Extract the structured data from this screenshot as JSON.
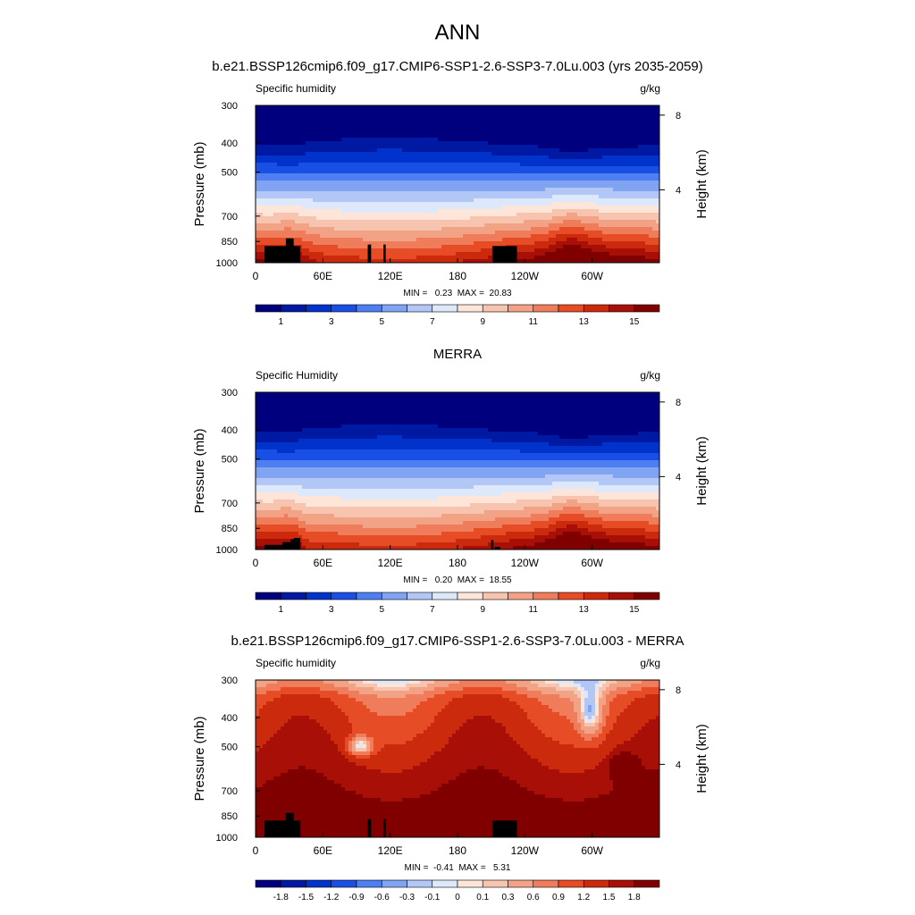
{
  "figure": {
    "season": "ANN",
    "model_title": "b.e21.BSSP126cmip6.f09_g17.CMIP6-SSP1-2.6-SSP3-7.0Lu.003 (yrs 2035-2059)",
    "obs_title": "MERRA",
    "diff_title": "b.e21.BSSP126cmip6.f09_g17.CMIP6-SSP1-2.6-SSP3-7.0Lu.003 - MERRA"
  },
  "colors": {
    "abs_palette": [
      "#00007f",
      "#0019a3",
      "#0033cc",
      "#1a4fe6",
      "#4d7ff2",
      "#80a3f2",
      "#b3c7f7",
      "#dde9fb",
      "#fde5d9",
      "#f7c4b0",
      "#f2a386",
      "#ef7d5b",
      "#e64d26",
      "#cc2a0d",
      "#a80f06",
      "#800000"
    ],
    "diff_palette": [
      "#00007f",
      "#0019a3",
      "#0033cc",
      "#1a4fe6",
      "#4d7ff2",
      "#80a3f2",
      "#b3c7f7",
      "#dde9fb",
      "#fde5d9",
      "#f7c4b0",
      "#f2a386",
      "#ef7d5b",
      "#e64d26",
      "#cc2a0d",
      "#a80f06",
      "#800000"
    ],
    "topography": "#000000"
  },
  "chart_data": [
    {
      "type": "heatmap",
      "id": "model",
      "left_title": "Specific humidity",
      "units": "g/kg",
      "ylabel": "Pressure (mb)",
      "y2label": "Height (km)",
      "xticks": [
        "0",
        "60E",
        "120E",
        "180",
        "120W",
        "60W"
      ],
      "xtick_lon": [
        0,
        60,
        120,
        180,
        240,
        300
      ],
      "xlim": [
        0,
        360
      ],
      "yticks": [
        "300",
        "400",
        "500",
        "700",
        "850",
        "1000"
      ],
      "ytick_p": [
        300,
        400,
        500,
        700,
        850,
        1000
      ],
      "ylim": [
        300,
        1000
      ],
      "y2ticks": [
        "8",
        "4"
      ],
      "y2tick_km": [
        8,
        4
      ],
      "stats": "MIN =   0.23  MAX =  20.83",
      "colorbar_labels": [
        "1",
        "3",
        "5",
        "7",
        "9",
        "11",
        "13",
        "15"
      ],
      "contour_levels": [
        1,
        2,
        3,
        4,
        5,
        6,
        7,
        8,
        9,
        10,
        11,
        12,
        13,
        14,
        15
      ]
    },
    {
      "type": "heatmap",
      "id": "obs",
      "left_title": "Specific Humidity",
      "units": "g/kg",
      "ylabel": "Pressure (mb)",
      "y2label": "Height (km)",
      "xticks": [
        "0",
        "60E",
        "120E",
        "180",
        "120W",
        "60W"
      ],
      "xtick_lon": [
        0,
        60,
        120,
        180,
        240,
        300
      ],
      "xlim": [
        0,
        360
      ],
      "yticks": [
        "300",
        "400",
        "500",
        "700",
        "850",
        "1000"
      ],
      "ytick_p": [
        300,
        400,
        500,
        700,
        850,
        1000
      ],
      "ylim": [
        300,
        1000
      ],
      "y2ticks": [
        "8",
        "4"
      ],
      "y2tick_km": [
        8,
        4
      ],
      "stats": "MIN =   0.20  MAX =  18.55",
      "colorbar_labels": [
        "1",
        "3",
        "5",
        "7",
        "9",
        "11",
        "13",
        "15"
      ],
      "contour_levels": [
        1,
        2,
        3,
        4,
        5,
        6,
        7,
        8,
        9,
        10,
        11,
        12,
        13,
        14,
        15
      ]
    },
    {
      "type": "heatmap",
      "id": "diff",
      "left_title": "Specific humidity",
      "units": "g/kg",
      "ylabel": "Pressure (mb)",
      "y2label": "Height (km)",
      "xticks": [
        "0",
        "60E",
        "120E",
        "180",
        "120W",
        "60W"
      ],
      "xtick_lon": [
        0,
        60,
        120,
        180,
        240,
        300
      ],
      "xlim": [
        0,
        360
      ],
      "yticks": [
        "300",
        "400",
        "500",
        "700",
        "850",
        "1000"
      ],
      "ytick_p": [
        300,
        400,
        500,
        700,
        850,
        1000
      ],
      "ylim": [
        300,
        1000
      ],
      "y2ticks": [
        "8",
        "4"
      ],
      "y2tick_km": [
        8,
        4
      ],
      "stats": "MIN =  -0.41  MAX =   5.31",
      "colorbar_labels": [
        "-1.8",
        "-1.5",
        "-1.2",
        "-0.9",
        "-0.6",
        "-0.3",
        "-0.1",
        "0",
        "0.1",
        "0.3",
        "0.6",
        "0.9",
        "1.2",
        "1.5",
        "1.8"
      ],
      "contour_levels": [
        -1.8,
        -1.5,
        -1.2,
        -0.9,
        -0.6,
        -0.3,
        -0.1,
        0,
        0.1,
        0.3,
        0.6,
        0.9,
        1.2,
        1.5,
        1.8
      ]
    }
  ]
}
